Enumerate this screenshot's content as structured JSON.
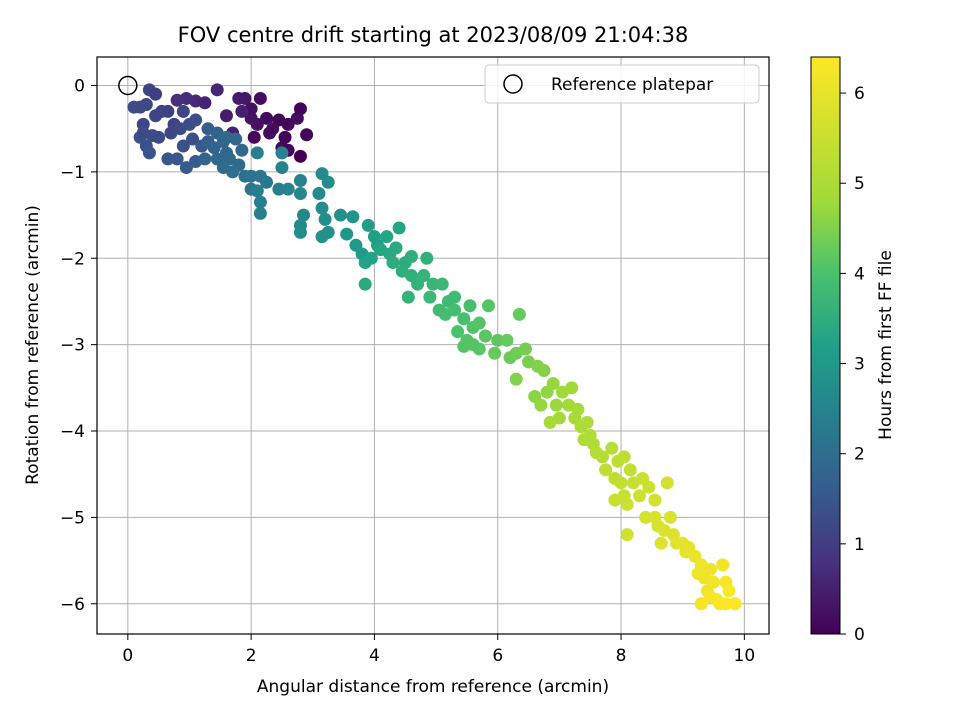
{
  "chart_data": {
    "type": "scatter",
    "title": "FOV centre drift starting at 2023/08/09 21:04:38",
    "xlabel": "Angular distance from reference (arcmin)",
    "ylabel": "Rotation from reference (arcmin)",
    "xlim": [
      -0.5,
      10.4
    ],
    "ylim": [
      -6.35,
      0.33
    ],
    "x_ticks": [
      0,
      2,
      4,
      6,
      8,
      10
    ],
    "y_ticks": [
      0,
      -1,
      -2,
      -3,
      -4,
      -5,
      -6
    ],
    "grid": true,
    "legend": {
      "placement": "top-right",
      "entries": [
        {
          "label": "Reference platepar",
          "marker": "open-circle"
        }
      ]
    },
    "reference_point": {
      "x": 0,
      "y": 0
    },
    "colorbar": {
      "label": "Hours from first FF file",
      "colormap": "viridis",
      "range": [
        0,
        6.4
      ],
      "ticks": [
        0,
        1,
        2,
        3,
        4,
        5,
        6
      ]
    },
    "points": [
      {
        "x": 2.25,
        "y": -0.38,
        "h": 0.15
      },
      {
        "x": 2.45,
        "y": -0.4,
        "h": 0.05
      },
      {
        "x": 2.6,
        "y": -0.45,
        "h": 0.1
      },
      {
        "x": 2.75,
        "y": -0.38,
        "h": 0.2
      },
      {
        "x": 2.8,
        "y": -0.27,
        "h": 0.05
      },
      {
        "x": 2.9,
        "y": -0.57,
        "h": 0.1
      },
      {
        "x": 2.5,
        "y": -0.72,
        "h": 0.15
      },
      {
        "x": 2.35,
        "y": -0.5,
        "h": 0.2
      },
      {
        "x": 2.1,
        "y": -0.45,
        "h": 0.25
      },
      {
        "x": 2.0,
        "y": -0.38,
        "h": 0.3
      },
      {
        "x": 2.05,
        "y": -0.6,
        "h": 0.1
      },
      {
        "x": 2.15,
        "y": -0.15,
        "h": 0.2
      },
      {
        "x": 1.9,
        "y": -0.15,
        "h": 0.35
      },
      {
        "x": 2.0,
        "y": -0.27,
        "h": 0.25
      },
      {
        "x": 2.55,
        "y": -0.6,
        "h": 0.05
      },
      {
        "x": 2.8,
        "y": -0.82,
        "h": 0.0
      },
      {
        "x": 2.6,
        "y": -0.75,
        "h": 0.05
      },
      {
        "x": 2.3,
        "y": -0.55,
        "h": 0.15
      },
      {
        "x": 1.8,
        "y": -0.15,
        "h": 0.4
      },
      {
        "x": 1.85,
        "y": -0.3,
        "h": 0.5
      },
      {
        "x": 1.45,
        "y": -0.05,
        "h": 0.6
      },
      {
        "x": 1.6,
        "y": -0.35,
        "h": 0.45
      },
      {
        "x": 1.1,
        "y": -0.18,
        "h": 0.65
      },
      {
        "x": 0.95,
        "y": -0.15,
        "h": 0.7
      },
      {
        "x": 0.8,
        "y": -0.17,
        "h": 0.75
      },
      {
        "x": 1.25,
        "y": -0.2,
        "h": 0.55
      },
      {
        "x": 1.7,
        "y": -0.55,
        "h": 0.5
      },
      {
        "x": 0.35,
        "y": -0.05,
        "h": 1.1
      },
      {
        "x": 0.3,
        "y": -0.22,
        "h": 1.2
      },
      {
        "x": 0.1,
        "y": -0.25,
        "h": 1.3
      },
      {
        "x": 0.2,
        "y": -0.25,
        "h": 1.25
      },
      {
        "x": 0.45,
        "y": -0.35,
        "h": 1.15
      },
      {
        "x": 0.25,
        "y": -0.45,
        "h": 1.2
      },
      {
        "x": 0.4,
        "y": -0.58,
        "h": 1.3
      },
      {
        "x": 0.2,
        "y": -0.6,
        "h": 1.35
      },
      {
        "x": 0.3,
        "y": -0.7,
        "h": 1.4
      },
      {
        "x": 0.35,
        "y": -0.78,
        "h": 1.45
      },
      {
        "x": 0.65,
        "y": -0.3,
        "h": 1.05
      },
      {
        "x": 0.75,
        "y": -0.45,
        "h": 1.1
      },
      {
        "x": 0.7,
        "y": -0.55,
        "h": 1.2
      },
      {
        "x": 0.85,
        "y": -0.5,
        "h": 1.25
      },
      {
        "x": 1.0,
        "y": -0.45,
        "h": 1.3
      },
      {
        "x": 1.05,
        "y": -0.62,
        "h": 1.35
      },
      {
        "x": 0.9,
        "y": -0.7,
        "h": 1.4
      },
      {
        "x": 0.8,
        "y": -0.85,
        "h": 1.5
      },
      {
        "x": 0.95,
        "y": -0.95,
        "h": 1.55
      },
      {
        "x": 1.1,
        "y": -0.88,
        "h": 1.6
      },
      {
        "x": 0.65,
        "y": -0.85,
        "h": 1.5
      },
      {
        "x": 1.2,
        "y": -0.7,
        "h": 1.55
      },
      {
        "x": 0.25,
        "y": -0.55,
        "h": 1.25
      },
      {
        "x": 0.5,
        "y": -0.6,
        "h": 1.3
      },
      {
        "x": 0.55,
        "y": -0.3,
        "h": 1.1
      },
      {
        "x": 0.45,
        "y": -0.1,
        "h": 1.05
      },
      {
        "x": 1.1,
        "y": -0.4,
        "h": 1.35
      },
      {
        "x": 0.9,
        "y": -0.3,
        "h": 1.2
      },
      {
        "x": 1.3,
        "y": -0.65,
        "h": 1.7
      },
      {
        "x": 1.4,
        "y": -0.72,
        "h": 1.75
      },
      {
        "x": 1.25,
        "y": -0.85,
        "h": 1.8
      },
      {
        "x": 1.3,
        "y": -0.5,
        "h": 1.65
      },
      {
        "x": 1.45,
        "y": -0.55,
        "h": 1.75
      },
      {
        "x": 1.55,
        "y": -0.65,
        "h": 1.8
      },
      {
        "x": 1.6,
        "y": -0.78,
        "h": 1.85
      },
      {
        "x": 1.65,
        "y": -0.85,
        "h": 1.9
      },
      {
        "x": 1.75,
        "y": -0.62,
        "h": 1.85
      },
      {
        "x": 1.85,
        "y": -0.75,
        "h": 1.9
      },
      {
        "x": 1.8,
        "y": -0.92,
        "h": 1.95
      },
      {
        "x": 1.9,
        "y": -1.05,
        "h": 2.05
      },
      {
        "x": 2.0,
        "y": -1.05,
        "h": 2.1
      },
      {
        "x": 2.0,
        "y": -1.2,
        "h": 2.15
      },
      {
        "x": 1.7,
        "y": -1.0,
        "h": 2.0
      },
      {
        "x": 1.55,
        "y": -0.95,
        "h": 1.95
      },
      {
        "x": 1.45,
        "y": -0.85,
        "h": 1.9
      },
      {
        "x": 1.6,
        "y": -0.6,
        "h": 1.85
      },
      {
        "x": 2.15,
        "y": -1.05,
        "h": 2.2
      },
      {
        "x": 2.25,
        "y": -1.12,
        "h": 2.25
      },
      {
        "x": 2.1,
        "y": -1.22,
        "h": 2.3
      },
      {
        "x": 2.15,
        "y": -1.35,
        "h": 2.35
      },
      {
        "x": 2.15,
        "y": -1.48,
        "h": 2.4
      },
      {
        "x": 2.45,
        "y": -1.2,
        "h": 2.4
      },
      {
        "x": 2.6,
        "y": -1.2,
        "h": 2.45
      },
      {
        "x": 2.8,
        "y": -1.1,
        "h": 2.5
      },
      {
        "x": 2.8,
        "y": -1.25,
        "h": 2.55
      },
      {
        "x": 2.5,
        "y": -0.95,
        "h": 2.5
      },
      {
        "x": 2.5,
        "y": -0.78,
        "h": 2.45
      },
      {
        "x": 2.1,
        "y": -0.78,
        "h": 2.35
      },
      {
        "x": 2.85,
        "y": -1.5,
        "h": 2.6
      },
      {
        "x": 2.8,
        "y": -1.62,
        "h": 2.65
      },
      {
        "x": 2.8,
        "y": -1.7,
        "h": 2.7
      },
      {
        "x": 3.15,
        "y": -1.42,
        "h": 2.7
      },
      {
        "x": 3.2,
        "y": -1.55,
        "h": 2.75
      },
      {
        "x": 3.25,
        "y": -1.7,
        "h": 2.8
      },
      {
        "x": 3.15,
        "y": -1.75,
        "h": 2.85
      },
      {
        "x": 3.1,
        "y": -1.25,
        "h": 2.65
      },
      {
        "x": 3.25,
        "y": -1.12,
        "h": 2.7
      },
      {
        "x": 3.15,
        "y": -1.02,
        "h": 2.65
      },
      {
        "x": 3.45,
        "y": -1.5,
        "h": 2.8
      },
      {
        "x": 3.65,
        "y": -1.52,
        "h": 2.9
      },
      {
        "x": 3.55,
        "y": -1.72,
        "h": 2.95
      },
      {
        "x": 3.7,
        "y": -1.85,
        "h": 3.0
      },
      {
        "x": 3.8,
        "y": -1.95,
        "h": 3.05
      },
      {
        "x": 3.9,
        "y": -1.62,
        "h": 3.1
      },
      {
        "x": 4.0,
        "y": -1.75,
        "h": 3.15
      },
      {
        "x": 4.05,
        "y": -1.85,
        "h": 3.2
      },
      {
        "x": 3.95,
        "y": -2.0,
        "h": 3.25
      },
      {
        "x": 3.85,
        "y": -2.05,
        "h": 3.25
      },
      {
        "x": 4.2,
        "y": -1.75,
        "h": 3.3
      },
      {
        "x": 4.25,
        "y": -1.95,
        "h": 3.35
      },
      {
        "x": 4.1,
        "y": -1.9,
        "h": 3.3
      },
      {
        "x": 3.85,
        "y": -2.3,
        "h": 3.4
      },
      {
        "x": 4.4,
        "y": -1.65,
        "h": 3.3
      },
      {
        "x": 4.35,
        "y": -1.88,
        "h": 3.4
      },
      {
        "x": 4.5,
        "y": -2.05,
        "h": 3.45
      },
      {
        "x": 4.6,
        "y": -1.98,
        "h": 3.5
      },
      {
        "x": 4.3,
        "y": -2.05,
        "h": 3.45
      },
      {
        "x": 4.45,
        "y": -2.15,
        "h": 3.5
      },
      {
        "x": 4.6,
        "y": -2.2,
        "h": 3.55
      },
      {
        "x": 4.7,
        "y": -2.3,
        "h": 3.6
      },
      {
        "x": 4.55,
        "y": -2.45,
        "h": 3.6
      },
      {
        "x": 4.85,
        "y": -2.0,
        "h": 3.55
      },
      {
        "x": 4.8,
        "y": -2.2,
        "h": 3.65
      },
      {
        "x": 4.95,
        "y": -2.3,
        "h": 3.7
      },
      {
        "x": 4.9,
        "y": -2.45,
        "h": 3.75
      },
      {
        "x": 5.1,
        "y": -2.3,
        "h": 3.75
      },
      {
        "x": 5.2,
        "y": -2.5,
        "h": 3.8
      },
      {
        "x": 5.05,
        "y": -2.6,
        "h": 3.85
      },
      {
        "x": 5.3,
        "y": -2.6,
        "h": 3.9
      },
      {
        "x": 5.15,
        "y": -2.65,
        "h": 3.9
      },
      {
        "x": 5.45,
        "y": -2.7,
        "h": 3.95
      },
      {
        "x": 5.35,
        "y": -2.85,
        "h": 4.0
      },
      {
        "x": 5.55,
        "y": -2.55,
        "h": 3.95
      },
      {
        "x": 5.6,
        "y": -2.8,
        "h": 4.05
      },
      {
        "x": 5.5,
        "y": -2.95,
        "h": 4.1
      },
      {
        "x": 5.7,
        "y": -2.75,
        "h": 4.1
      },
      {
        "x": 5.8,
        "y": -2.9,
        "h": 4.15
      },
      {
        "x": 5.85,
        "y": -2.55,
        "h": 4.1
      },
      {
        "x": 5.7,
        "y": -3.05,
        "h": 4.15
      },
      {
        "x": 6.0,
        "y": -2.95,
        "h": 4.2
      },
      {
        "x": 5.95,
        "y": -3.1,
        "h": 4.25
      },
      {
        "x": 5.3,
        "y": -2.45,
        "h": 3.85
      },
      {
        "x": 5.6,
        "y": -3.0,
        "h": 4.1
      },
      {
        "x": 5.45,
        "y": -3.02,
        "h": 4.1
      },
      {
        "x": 6.15,
        "y": -2.95,
        "h": 4.25
      },
      {
        "x": 6.2,
        "y": -3.15,
        "h": 4.3
      },
      {
        "x": 6.35,
        "y": -2.65,
        "h": 4.25
      },
      {
        "x": 6.3,
        "y": -3.1,
        "h": 4.35
      },
      {
        "x": 6.45,
        "y": -3.05,
        "h": 4.4
      },
      {
        "x": 6.5,
        "y": -3.2,
        "h": 4.45
      },
      {
        "x": 6.3,
        "y": -3.4,
        "h": 4.5
      },
      {
        "x": 6.65,
        "y": -3.25,
        "h": 4.5
      },
      {
        "x": 6.75,
        "y": -3.3,
        "h": 4.55
      },
      {
        "x": 6.6,
        "y": -3.6,
        "h": 4.6
      },
      {
        "x": 6.8,
        "y": -3.55,
        "h": 4.65
      },
      {
        "x": 6.9,
        "y": -3.45,
        "h": 4.7
      },
      {
        "x": 6.7,
        "y": -3.7,
        "h": 4.7
      },
      {
        "x": 6.95,
        "y": -3.7,
        "h": 4.75
      },
      {
        "x": 7.05,
        "y": -3.55,
        "h": 4.8
      },
      {
        "x": 7.2,
        "y": -3.5,
        "h": 4.8
      },
      {
        "x": 7.15,
        "y": -3.7,
        "h": 4.85
      },
      {
        "x": 7.0,
        "y": -3.85,
        "h": 4.85
      },
      {
        "x": 6.85,
        "y": -3.9,
        "h": 4.9
      },
      {
        "x": 7.3,
        "y": -3.75,
        "h": 4.9
      },
      {
        "x": 7.25,
        "y": -3.85,
        "h": 4.95
      },
      {
        "x": 7.35,
        "y": -3.95,
        "h": 5.0
      },
      {
        "x": 7.45,
        "y": -3.9,
        "h": 5.0
      },
      {
        "x": 7.5,
        "y": -4.05,
        "h": 5.05
      },
      {
        "x": 7.4,
        "y": -4.1,
        "h": 5.05
      },
      {
        "x": 7.55,
        "y": -4.15,
        "h": 5.1
      },
      {
        "x": 7.6,
        "y": -4.25,
        "h": 5.15
      },
      {
        "x": 7.7,
        "y": -4.3,
        "h": 5.2
      },
      {
        "x": 7.85,
        "y": -4.2,
        "h": 5.2
      },
      {
        "x": 7.95,
        "y": -4.35,
        "h": 5.25
      },
      {
        "x": 8.05,
        "y": -4.3,
        "h": 5.3
      },
      {
        "x": 7.75,
        "y": -4.45,
        "h": 5.3
      },
      {
        "x": 7.9,
        "y": -4.55,
        "h": 5.35
      },
      {
        "x": 8.0,
        "y": -4.6,
        "h": 5.4
      },
      {
        "x": 8.15,
        "y": -4.45,
        "h": 5.4
      },
      {
        "x": 8.2,
        "y": -4.6,
        "h": 5.45
      },
      {
        "x": 8.05,
        "y": -4.75,
        "h": 5.5
      },
      {
        "x": 7.9,
        "y": -4.8,
        "h": 5.5
      },
      {
        "x": 8.1,
        "y": -4.85,
        "h": 5.55
      },
      {
        "x": 8.35,
        "y": -4.55,
        "h": 5.5
      },
      {
        "x": 8.45,
        "y": -4.65,
        "h": 5.55
      },
      {
        "x": 8.3,
        "y": -4.75,
        "h": 5.6
      },
      {
        "x": 8.55,
        "y": -4.8,
        "h": 5.65
      },
      {
        "x": 8.1,
        "y": -5.2,
        "h": 5.6
      },
      {
        "x": 8.4,
        "y": -5.0,
        "h": 5.7
      },
      {
        "x": 8.55,
        "y": -5.0,
        "h": 5.75
      },
      {
        "x": 8.6,
        "y": -5.1,
        "h": 5.75
      },
      {
        "x": 8.7,
        "y": -5.15,
        "h": 5.8
      },
      {
        "x": 8.75,
        "y": -4.6,
        "h": 5.7
      },
      {
        "x": 8.8,
        "y": -5.0,
        "h": 5.8
      },
      {
        "x": 8.65,
        "y": -5.3,
        "h": 5.85
      },
      {
        "x": 8.85,
        "y": -5.2,
        "h": 5.85
      },
      {
        "x": 8.9,
        "y": -5.3,
        "h": 5.9
      },
      {
        "x": 9.0,
        "y": -5.3,
        "h": 5.95
      },
      {
        "x": 9.05,
        "y": -5.4,
        "h": 5.95
      },
      {
        "x": 9.1,
        "y": -5.35,
        "h": 6.0
      },
      {
        "x": 9.2,
        "y": -5.45,
        "h": 6.05
      },
      {
        "x": 9.3,
        "y": -5.55,
        "h": 6.1
      },
      {
        "x": 9.25,
        "y": -5.65,
        "h": 6.1
      },
      {
        "x": 9.35,
        "y": -5.7,
        "h": 6.15
      },
      {
        "x": 9.45,
        "y": -5.6,
        "h": 6.15
      },
      {
        "x": 9.5,
        "y": -5.75,
        "h": 6.2
      },
      {
        "x": 9.4,
        "y": -5.85,
        "h": 6.2
      },
      {
        "x": 9.3,
        "y": -6.0,
        "h": 6.25
      },
      {
        "x": 9.55,
        "y": -5.95,
        "h": 6.3
      },
      {
        "x": 9.65,
        "y": -5.55,
        "h": 6.2
      },
      {
        "x": 9.7,
        "y": -5.75,
        "h": 6.3
      },
      {
        "x": 9.75,
        "y": -5.85,
        "h": 6.35
      },
      {
        "x": 9.6,
        "y": -6.0,
        "h": 6.35
      },
      {
        "x": 9.7,
        "y": -6.0,
        "h": 6.4
      },
      {
        "x": 9.85,
        "y": -6.0,
        "h": 6.4
      },
      {
        "x": 9.45,
        "y": -5.92,
        "h": 6.3
      }
    ]
  }
}
